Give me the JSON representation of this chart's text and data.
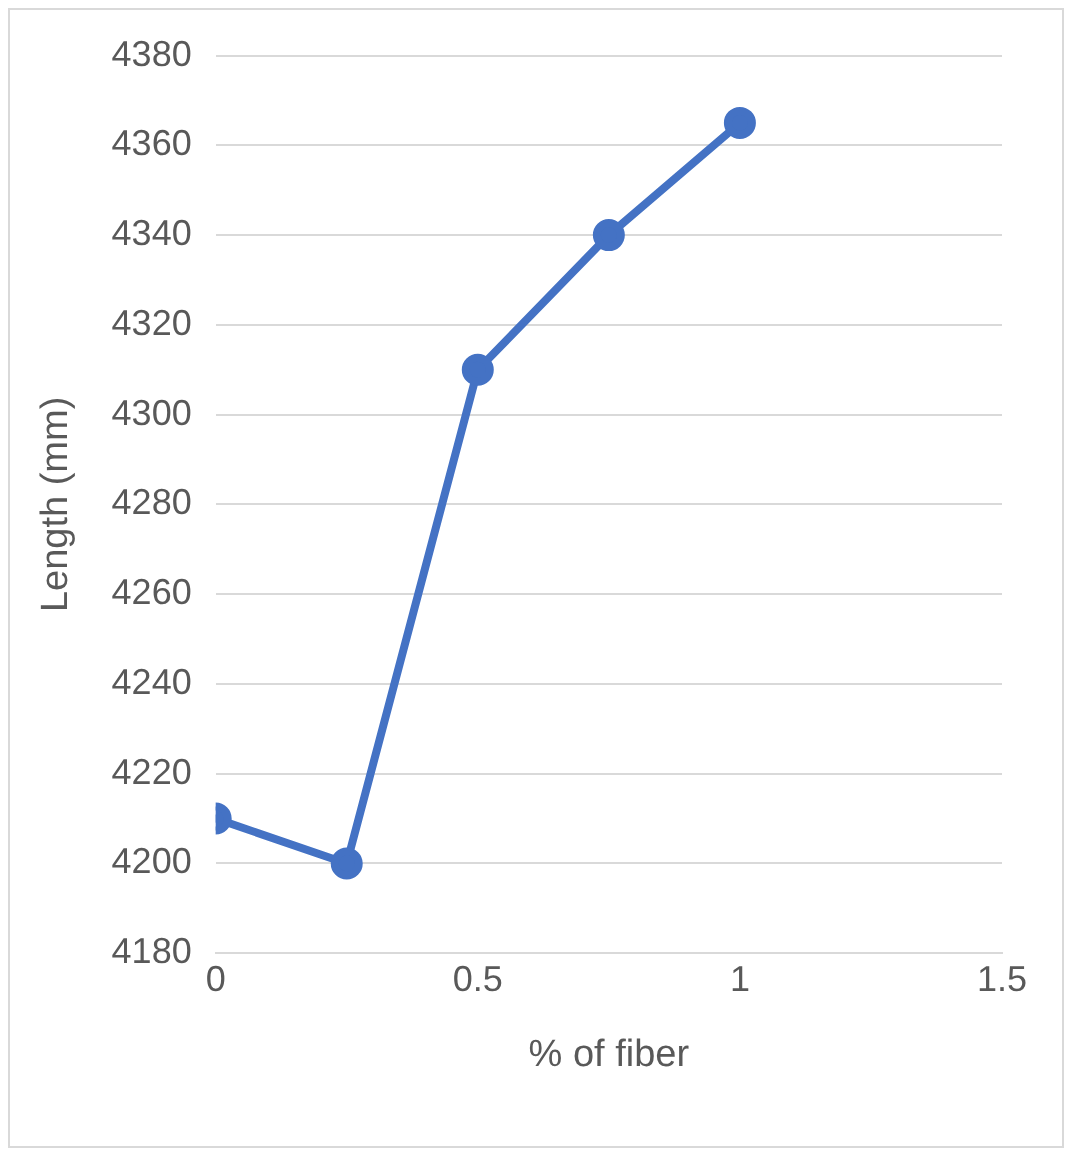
{
  "chart_data": {
    "type": "line",
    "xlabel": "% of fiber",
    "ylabel": "Length (mm)",
    "x": [
      0,
      0.25,
      0.5,
      0.75,
      1
    ],
    "series": [
      {
        "color": "#4472c4",
        "values": [
          4210,
          4200,
          4310,
          4340,
          4365
        ]
      }
    ],
    "xlim": [
      0,
      1.5
    ],
    "xticks": [
      0,
      0.5,
      1,
      1.5
    ],
    "ylim": [
      4180,
      4380
    ],
    "yticks": [
      4180,
      4200,
      4220,
      4240,
      4260,
      4280,
      4300,
      4320,
      4340,
      4360,
      4380
    ],
    "grid": "y",
    "legend": false,
    "marker": "circle",
    "line_style": "solid"
  }
}
